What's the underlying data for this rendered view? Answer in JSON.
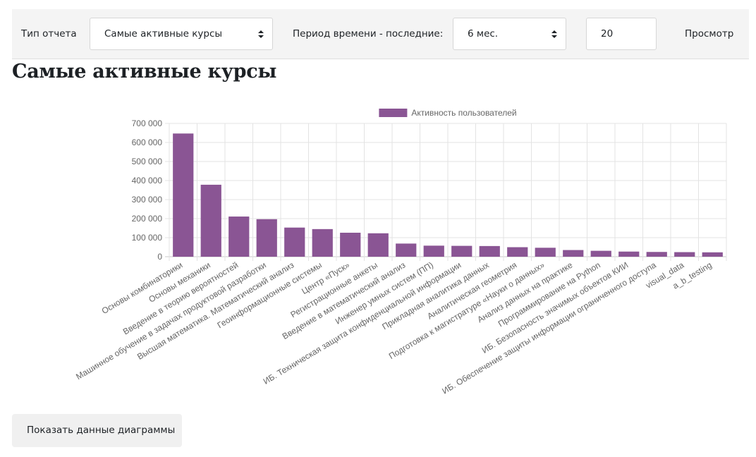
{
  "filters": {
    "report_type_label": "Тип отчета",
    "report_type_value": "Самые активные курсы",
    "period_label": "Период времени - последние:",
    "period_value": "6 мес.",
    "count_value": "20",
    "view_button": "Просмотр"
  },
  "page": {
    "title": "Самые активные курсы",
    "show_data_button": "Показать данные диаграммы"
  },
  "chart_data": {
    "type": "bar",
    "title": "",
    "xlabel": "",
    "ylabel": "",
    "ylim": [
      0,
      700000
    ],
    "yticks": [
      0,
      100000,
      200000,
      300000,
      400000,
      500000,
      600000,
      700000
    ],
    "ytick_labels": [
      "0",
      "100 000",
      "200 000",
      "300 000",
      "400 000",
      "500 000",
      "600 000",
      "700 000"
    ],
    "grid": true,
    "legend_position": "top",
    "bar_color": "#8a5594",
    "categories": [
      "Основы комбинаторики",
      "Основы механики",
      "Введение в теорию вероятностей",
      "Машинное обучение в задачах продуктовой разработки",
      "Высшая математика. Математический анализ",
      "Геоинформационные системы",
      "Центр «Пуск»",
      "Регистрационные анкеты",
      "Введение в математический анализ",
      "Инженер умных систем (ПП)",
      "ИБ. Техническая защита конфиденциальной информации",
      "Прикладная аналитика данных",
      "Аналитическая геометрия",
      "Подготовка к магистратуре «Науки о данных»",
      "Анализ данных на практике",
      "Программирование на Python",
      "ИБ. Безопасность значимых объектов КИИ",
      "ИБ. Обеспечение защиты информации ограниченного доступа",
      "visual_data",
      "a_b_testing"
    ],
    "series": [
      {
        "name": "Активность пользователей",
        "values": [
          647000,
          378000,
          211000,
          197000,
          153000,
          145000,
          126000,
          123000,
          69000,
          58000,
          57000,
          56000,
          50000,
          47000,
          35000,
          31000,
          27000,
          25000,
          24000,
          23000
        ]
      }
    ]
  }
}
